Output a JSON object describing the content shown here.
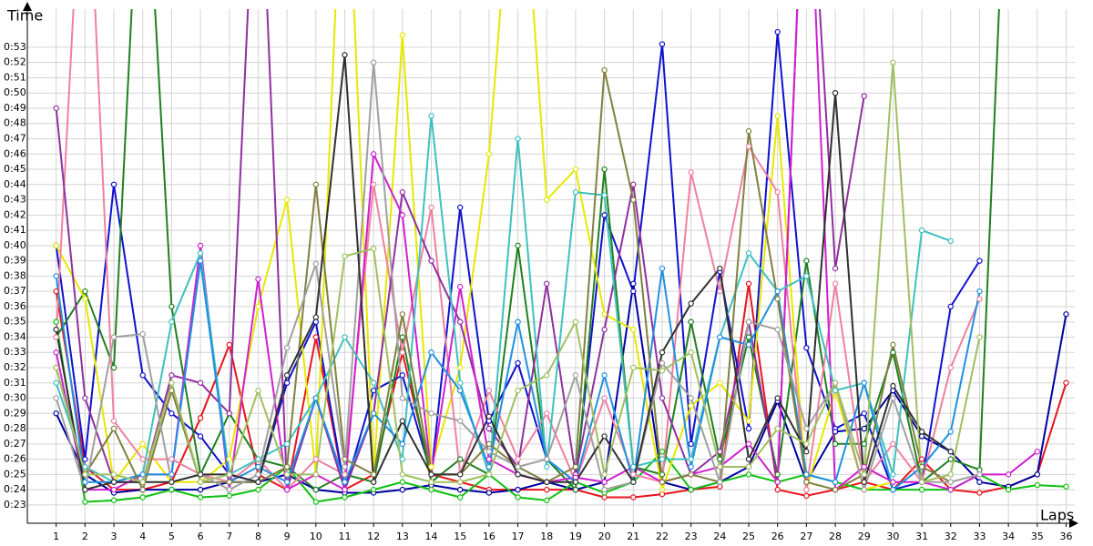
{
  "chart_data": {
    "type": "line",
    "x_label": "Laps",
    "y_label": "Time",
    "x": [
      1,
      2,
      3,
      4,
      5,
      6,
      7,
      8,
      9,
      10,
      11,
      12,
      13,
      14,
      15,
      16,
      17,
      18,
      19,
      20,
      21,
      22,
      23,
      24,
      25,
      26,
      27,
      28,
      29,
      30,
      31,
      32,
      33,
      34,
      35,
      36
    ],
    "xlim": [
      0,
      36.3
    ],
    "xticks": [
      1,
      2,
      3,
      4,
      5,
      6,
      7,
      8,
      9,
      10,
      11,
      12,
      13,
      14,
      15,
      16,
      17,
      18,
      19,
      20,
      21,
      22,
      23,
      24,
      25,
      26,
      27,
      28,
      29,
      30,
      31,
      32,
      33,
      34,
      35,
      36
    ],
    "ylim": [
      21.8,
      55.5
    ],
    "yticks": [
      {
        "value": 23,
        "label": "0:23"
      },
      {
        "value": 24,
        "label": "0:24"
      },
      {
        "value": 25,
        "label": "0:25"
      },
      {
        "value": 26,
        "label": "0:26"
      },
      {
        "value": 27,
        "label": "0:27"
      },
      {
        "value": 28,
        "label": "0:28"
      },
      {
        "value": 29,
        "label": "0:29"
      },
      {
        "value": 30,
        "label": "0:30"
      },
      {
        "value": 31,
        "label": "0:31"
      },
      {
        "value": 32,
        "label": "0:32"
      },
      {
        "value": 33,
        "label": "0:33"
      },
      {
        "value": 34,
        "label": "0:34"
      },
      {
        "value": 35,
        "label": "0:35"
      },
      {
        "value": 36,
        "label": "0:36"
      },
      {
        "value": 37,
        "label": "0:37"
      },
      {
        "value": 38,
        "label": "0:38"
      },
      {
        "value": 39,
        "label": "0:39"
      },
      {
        "value": 40,
        "label": "0:40"
      },
      {
        "value": 41,
        "label": "0:41"
      },
      {
        "value": 42,
        "label": "0:42"
      },
      {
        "value": 43,
        "label": "0:43"
      },
      {
        "value": 44,
        "label": "0:44"
      },
      {
        "value": 45,
        "label": "0:45"
      },
      {
        "value": 46,
        "label": "0:46"
      },
      {
        "value": 47,
        "label": "0:47"
      },
      {
        "value": 48,
        "label": "0:48"
      },
      {
        "value": 49,
        "label": "0:49"
      },
      {
        "value": 50,
        "label": "0:50"
      },
      {
        "value": 51,
        "label": "0:51"
      },
      {
        "value": 52,
        "label": "0:52"
      },
      {
        "value": 53,
        "label": "0:53"
      }
    ],
    "grid": true,
    "series": [
      {
        "color": "#e8141c",
        "values": [
          37,
          25.5,
          24,
          24,
          24.5,
          28.7,
          33.5,
          25,
          24,
          34,
          24,
          25,
          33,
          25,
          24.5,
          24,
          24,
          24,
          24,
          23.5,
          23.5,
          23.7,
          24,
          24.2,
          37.5,
          24,
          23.6,
          24,
          24.5,
          24,
          26,
          24,
          23.8,
          24.2,
          25,
          31
        ]
      },
      {
        "color": "#1010d0",
        "values": [
          40,
          26,
          44,
          31.5,
          29,
          27.5,
          25,
          24.5,
          31,
          35,
          24,
          30.5,
          31.5,
          25,
          42.5,
          28.5,
          32.3,
          26,
          24.5,
          42,
          37,
          53.2,
          27,
          38.3,
          28,
          54,
          33.3,
          28,
          29,
          24,
          24.5,
          36,
          39,
          null,
          null,
          null
        ]
      },
      {
        "color": "#0000a0",
        "values": [
          29,
          25,
          23.8,
          24,
          24,
          24,
          24.5,
          24.5,
          25,
          24,
          23.8,
          23.8,
          24,
          24.3,
          24,
          23.8,
          24,
          24.5,
          24,
          24.5,
          37.5,
          24.5,
          24,
          24.5,
          25.5,
          29.8,
          24.5,
          27.8,
          28,
          30.5,
          27.5,
          26.5,
          24.5,
          24.2,
          25,
          35.5
        ]
      },
      {
        "color": "#10c010",
        "values": [
          35,
          23.2,
          23.3,
          23.5,
          24,
          23.5,
          23.6,
          24,
          25.5,
          23.2,
          23.5,
          24,
          24.5,
          24,
          23.5,
          25,
          23.5,
          23.3,
          24.5,
          23.8,
          24.5,
          26.5,
          24,
          24.5,
          25,
          24.5,
          25,
          24.5,
          24,
          24,
          24,
          24,
          25,
          24,
          24.3,
          24.2
        ]
      },
      {
        "color": "#208020",
        "values": [
          34,
          37,
          32,
          70,
          36,
          25,
          29,
          26,
          25.5,
          24,
          25,
          24.5,
          34,
          24.5,
          26,
          25,
          40,
          26,
          24,
          45,
          25.5,
          25,
          35,
          26,
          34,
          25,
          39,
          27,
          27,
          33,
          24.5,
          26,
          25.3,
          70,
          null,
          null
        ]
      },
      {
        "color": "#e8e800",
        "values": [
          40,
          36.5,
          24.5,
          27,
          24.5,
          24.5,
          26,
          36,
          43,
          25,
          70,
          25,
          53.8,
          25.5,
          32,
          46,
          70,
          43,
          45,
          35.5,
          34.5,
          24,
          29.5,
          31,
          28.5,
          48.5,
          24,
          30.5,
          24,
          24.5,
          null,
          null,
          null,
          null,
          null,
          null
        ]
      },
      {
        "color": "#f080a0",
        "values": [
          34,
          70,
          28.5,
          26,
          26,
          25,
          24.5,
          26,
          24,
          26,
          25,
          44,
          33,
          42.5,
          25,
          30.5,
          26,
          29,
          24.5,
          30,
          25,
          24.5,
          44.8,
          37,
          46.5,
          43.5,
          24,
          37.5,
          24.5,
          27,
          24.5,
          32,
          36.5,
          null,
          null,
          null
        ]
      },
      {
        "color": "#9030a0",
        "values": [
          49,
          30,
          24.5,
          24.5,
          31.5,
          31,
          29,
          70,
          24,
          30,
          24,
          29,
          43.5,
          39,
          35,
          28,
          25.5,
          37.5,
          25,
          34.5,
          44,
          30,
          25,
          26.5,
          35,
          24.5,
          70,
          38.5,
          49.8,
          null,
          null,
          null,
          null,
          null,
          null,
          null
        ]
      },
      {
        "color": "#d020d0",
        "values": [
          33,
          24,
          24,
          25,
          25,
          40,
          24,
          37.8,
          24,
          25,
          24,
          46,
          42,
          25,
          37.3,
          26,
          25,
          24.5,
          24.8,
          24.5,
          25.5,
          24.5,
          25,
          25.5,
          27,
          24.5,
          70,
          24,
          25.5,
          24.5,
          24.5,
          24,
          25,
          25,
          26.5,
          null
        ]
      },
      {
        "color": "#40c0c0",
        "values": [
          31,
          25.5,
          24.5,
          25,
          35,
          39.5,
          25,
          26,
          27,
          30,
          34,
          31,
          26,
          48.5,
          31,
          25,
          47,
          25.5,
          43.5,
          43.3,
          25.5,
          26,
          26,
          34,
          39.5,
          37,
          38,
          30.5,
          31,
          25,
          41,
          40.3,
          null,
          null,
          null,
          null
        ]
      },
      {
        "color": "#2090e0",
        "values": [
          38,
          24.5,
          24.5,
          25,
          25,
          39,
          24.5,
          25.5,
          24.5,
          30,
          24.5,
          29,
          27,
          33,
          30.5,
          25.5,
          35,
          26,
          24.5,
          31.5,
          24.5,
          38.5,
          25.5,
          34,
          33.5,
          37,
          25,
          24.5,
          31,
          24,
          25.5,
          27.8,
          37,
          null,
          null,
          null
        ]
      },
      {
        "color": "#808040",
        "values": [
          32,
          25,
          28,
          24,
          30.5,
          24.5,
          24.5,
          24.5,
          25.5,
          44,
          26,
          25,
          35.5,
          25,
          25,
          27,
          25.5,
          24.5,
          25.5,
          51.5,
          43,
          24.5,
          25,
          24.5,
          47.5,
          36.5,
          24.5,
          24,
          25,
          33.5,
          25.5,
          24.5,
          null,
          null,
          null,
          null
        ]
      },
      {
        "color": "#a0a0a0",
        "values": [
          30,
          24,
          34,
          34.2,
          24.5,
          25,
          24,
          25,
          33.3,
          38.8,
          25.5,
          52,
          30,
          29,
          28.5,
          26.5,
          25.5,
          26,
          31.5,
          24,
          24.5,
          32.3,
          30,
          24.5,
          35,
          34.5,
          28,
          31,
          24,
          30,
          24.5,
          24.5,
          25,
          null,
          null,
          null
        ]
      },
      {
        "color": "#303030",
        "values": [
          34.5,
          24,
          24.5,
          24.5,
          24.5,
          25,
          25,
          24.5,
          31.5,
          35.3,
          52.5,
          24.5,
          28.5,
          25,
          25,
          28.8,
          25,
          24.5,
          24.5,
          27.5,
          24.5,
          33,
          36.2,
          38.5,
          26,
          30,
          26.5,
          50,
          24.5,
          30.8,
          27.8,
          26.5,
          null,
          null,
          null,
          null
        ]
      },
      {
        "color": "#a0c060",
        "values": [
          32,
          25,
          25,
          24.5,
          31,
          24.5,
          25,
          30.5,
          25,
          25,
          39.3,
          39.8,
          25,
          24.5,
          24.5,
          25,
          30.5,
          31.5,
          35,
          25,
          32,
          31.8,
          33,
          25.5,
          25.5,
          28,
          27,
          31,
          25,
          52,
          24.5,
          25,
          34,
          null,
          null,
          null
        ]
      }
    ]
  }
}
